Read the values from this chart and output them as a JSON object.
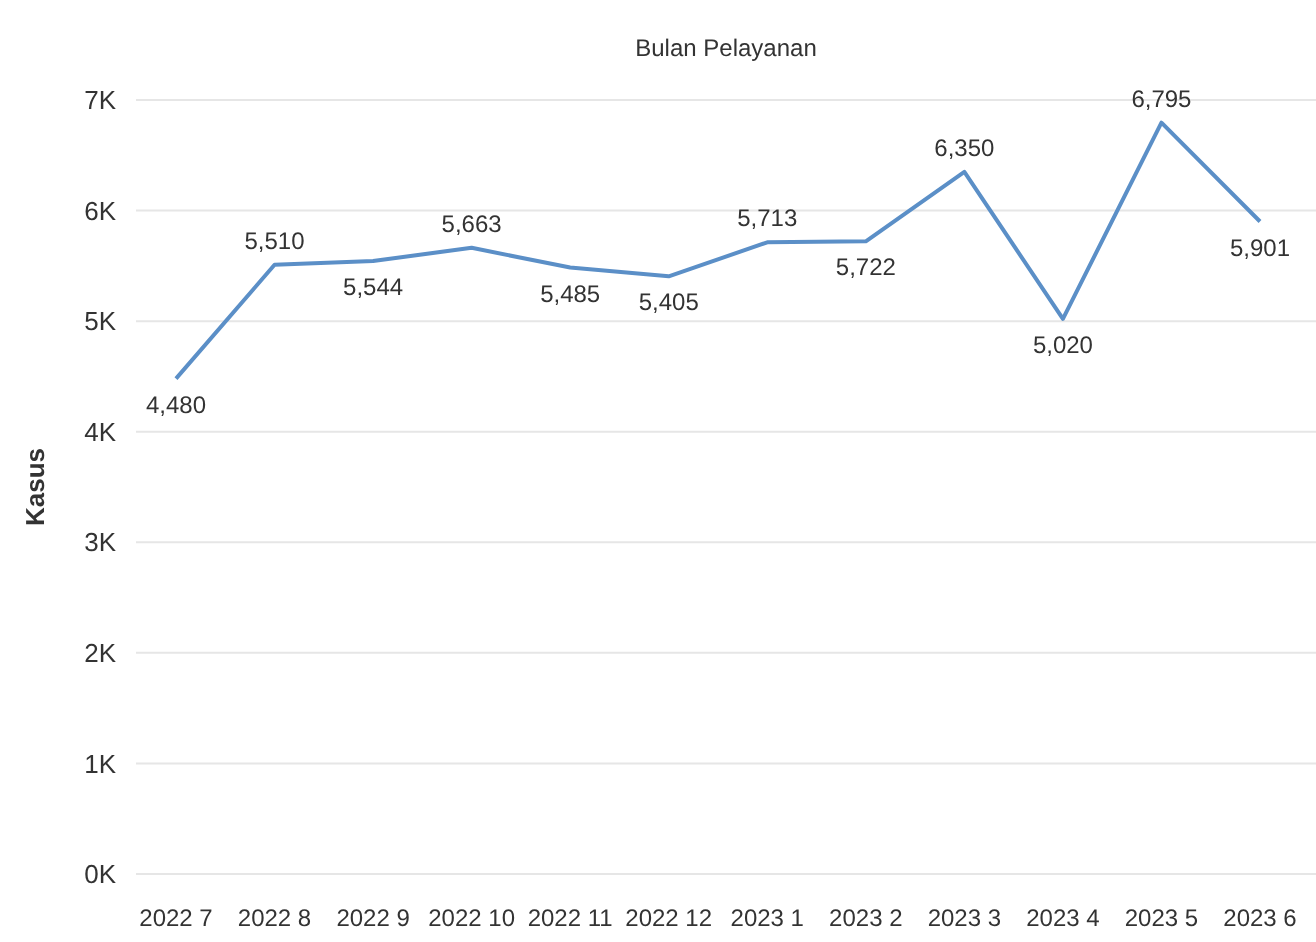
{
  "chart_data": {
    "type": "line",
    "title": "Bulan Pelayanan",
    "ylabel": "Kasus",
    "categories": [
      "2022 7",
      "2022 8",
      "2022 9",
      "2022 10",
      "2022 11",
      "2022 12",
      "2023 1",
      "2023 2",
      "2023 3",
      "2023 4",
      "2023 5",
      "2023 6"
    ],
    "series": [
      {
        "color": "#5b8fc7",
        "values": [
          4480,
          5510,
          5544,
          5663,
          5485,
          5405,
          5713,
          5722,
          6350,
          5020,
          6795,
          5901
        ],
        "value_labels": [
          "4,480",
          "5,510",
          "5,544",
          "5,663",
          "5,485",
          "5,405",
          "5,713",
          "5,722",
          "6,350",
          "5,020",
          "6,795",
          "5,901"
        ]
      }
    ],
    "ylim": [
      0,
      7000
    ],
    "yticks": [
      {
        "value": 0,
        "label": "0K"
      },
      {
        "value": 1000,
        "label": "1K"
      },
      {
        "value": 2000,
        "label": "2K"
      },
      {
        "value": 3000,
        "label": "3K"
      },
      {
        "value": 4000,
        "label": "4K"
      },
      {
        "value": 5000,
        "label": "5K"
      },
      {
        "value": 6000,
        "label": "6K"
      },
      {
        "value": 7000,
        "label": "7K"
      }
    ],
    "grid": "y",
    "marker": "none",
    "line_style": "solid"
  }
}
